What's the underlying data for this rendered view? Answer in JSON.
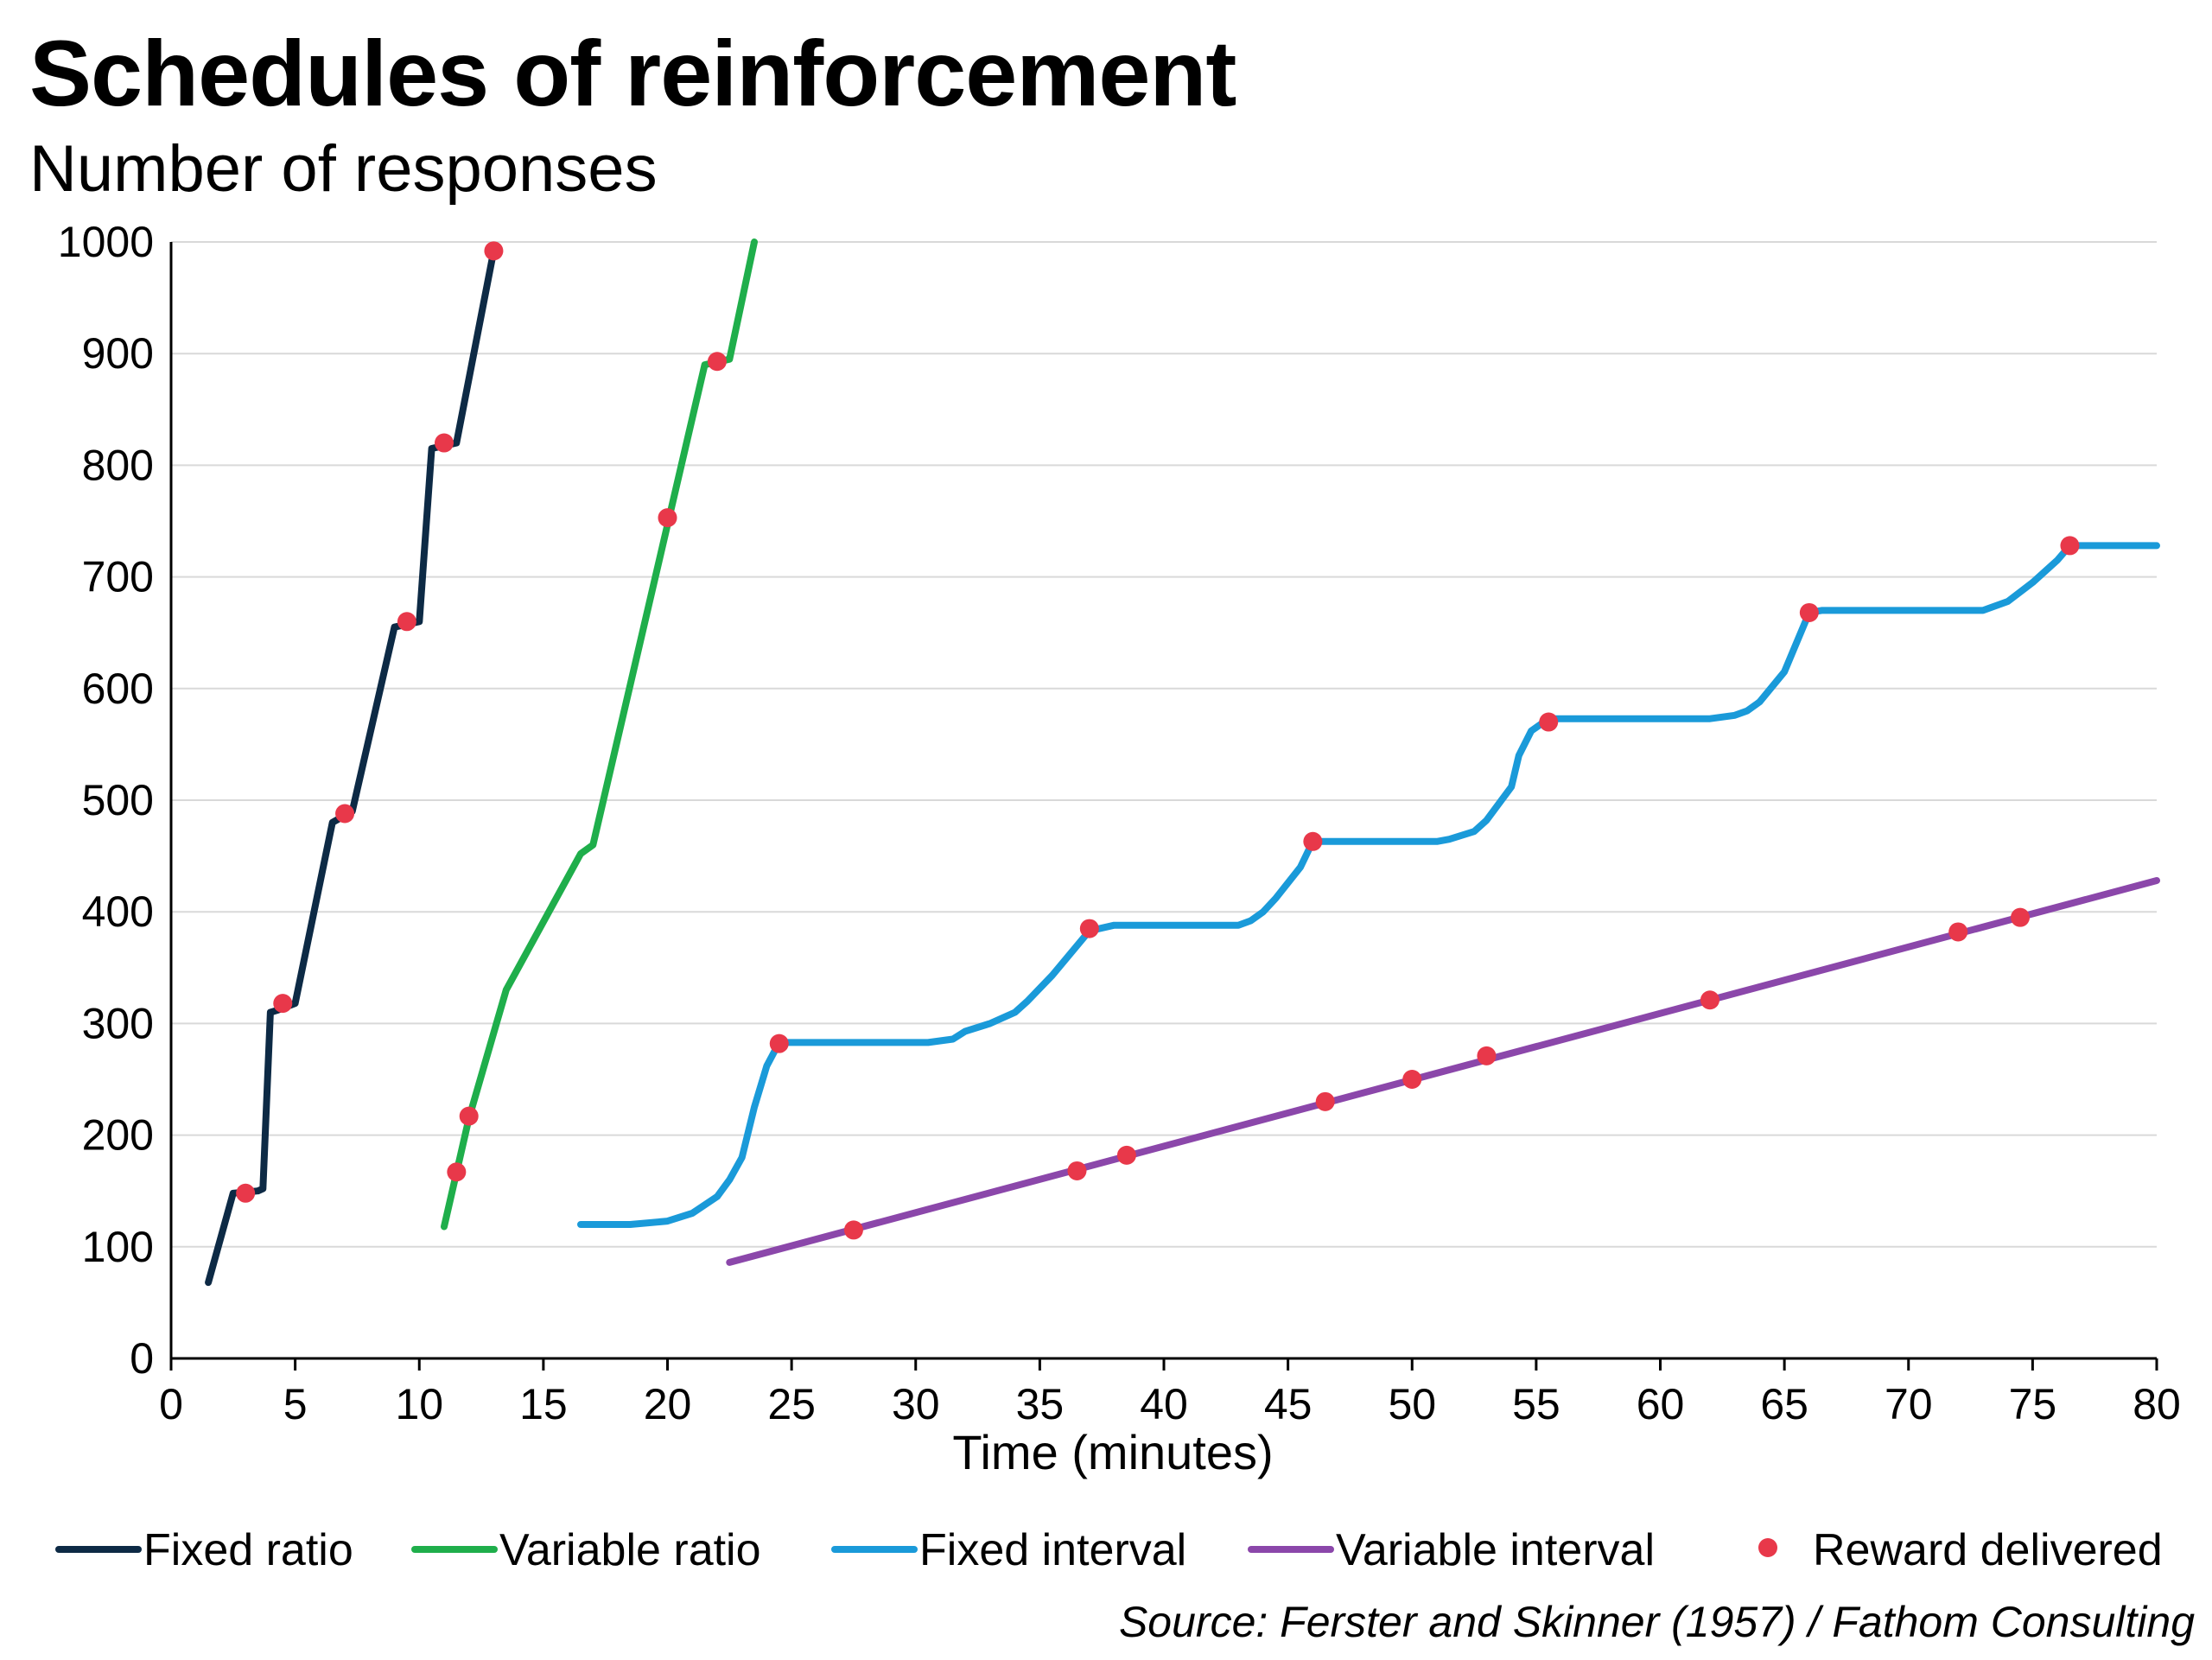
{
  "title": "Schedules of reinforcement",
  "subtitle": "Number of responses",
  "source": "Source: Ferster and Skinner (1957) / Fathom Consulting",
  "chart_data": {
    "type": "line",
    "title": "Schedules of reinforcement",
    "ylabel": "Number of responses",
    "xlabel": "Time (minutes)",
    "xlim": [
      0,
      80
    ],
    "ylim": [
      0,
      1000
    ],
    "xticks": [
      0,
      5,
      10,
      15,
      20,
      25,
      30,
      35,
      40,
      45,
      50,
      55,
      60,
      65,
      70,
      75,
      80
    ],
    "yticks": [
      0,
      100,
      200,
      300,
      400,
      500,
      600,
      700,
      800,
      900,
      1000
    ],
    "grid": "horizontal",
    "legend_position": "bottom",
    "series": [
      {
        "name": "Fixed ratio",
        "color": "#0d2a45",
        "points": [
          [
            1.5,
            68
          ],
          [
            2.5,
            148
          ],
          [
            3.5,
            150
          ],
          [
            3.7,
            152
          ],
          [
            4.0,
            310
          ],
          [
            4.3,
            312
          ],
          [
            5.0,
            318
          ],
          [
            6.5,
            480
          ],
          [
            7.3,
            490
          ],
          [
            9.0,
            655
          ],
          [
            10.0,
            660
          ],
          [
            10.5,
            815
          ],
          [
            11.5,
            820
          ],
          [
            13.0,
            992
          ]
        ]
      },
      {
        "name": "Variable ratio",
        "color": "#1fae4b",
        "points": [
          [
            11.0,
            118
          ],
          [
            12.0,
            215
          ],
          [
            13.5,
            330
          ],
          [
            16.5,
            452
          ],
          [
            17.0,
            460
          ],
          [
            21.5,
            890
          ],
          [
            22.5,
            895
          ],
          [
            23.5,
            1000
          ]
        ]
      },
      {
        "name": "Fixed interval",
        "color": "#1a9ad9",
        "points": [
          [
            16.5,
            120
          ],
          [
            17.5,
            120
          ],
          [
            18.5,
            120
          ],
          [
            20.0,
            123
          ],
          [
            21.0,
            130
          ],
          [
            22.0,
            145
          ],
          [
            22.5,
            160
          ],
          [
            23.0,
            180
          ],
          [
            23.5,
            225
          ],
          [
            24.0,
            262
          ],
          [
            24.5,
            283
          ],
          [
            26.0,
            283
          ],
          [
            30.5,
            283
          ],
          [
            31.5,
            286
          ],
          [
            32.0,
            293
          ],
          [
            33.0,
            300
          ],
          [
            34.0,
            310
          ],
          [
            34.5,
            320
          ],
          [
            35.5,
            343
          ],
          [
            37.0,
            383
          ],
          [
            38.0,
            388
          ],
          [
            40.0,
            388
          ],
          [
            42.0,
            388
          ],
          [
            43.0,
            388
          ],
          [
            43.5,
            392
          ],
          [
            44.0,
            400
          ],
          [
            44.5,
            412
          ],
          [
            45.5,
            440
          ],
          [
            46.0,
            463
          ],
          [
            48.0,
            463
          ],
          [
            51.0,
            463
          ],
          [
            51.5,
            465
          ],
          [
            52.5,
            472
          ],
          [
            53.0,
            482
          ],
          [
            54.0,
            512
          ],
          [
            54.3,
            540
          ],
          [
            54.8,
            562
          ],
          [
            55.5,
            573
          ],
          [
            58.0,
            573
          ],
          [
            61.0,
            573
          ],
          [
            62.0,
            573
          ],
          [
            63.0,
            576
          ],
          [
            63.5,
            580
          ],
          [
            64.0,
            588
          ],
          [
            65.0,
            615
          ],
          [
            66.0,
            668
          ],
          [
            66.5,
            670
          ],
          [
            70.0,
            670
          ],
          [
            73.0,
            670
          ],
          [
            74.0,
            678
          ],
          [
            75.0,
            695
          ],
          [
            76.0,
            715
          ],
          [
            76.5,
            728
          ],
          [
            78.0,
            728
          ],
          [
            80.0,
            728
          ]
        ]
      },
      {
        "name": "Variable interval",
        "color": "#8b47aa",
        "points": [
          [
            22.5,
            86
          ],
          [
            80.0,
            428
          ]
        ]
      }
    ],
    "rewards": {
      "name": "Reward delivered",
      "color": "#e8384a",
      "points": [
        [
          3.0,
          148
        ],
        [
          4.5,
          318
        ],
        [
          7.0,
          488
        ],
        [
          9.5,
          660
        ],
        [
          11.0,
          820
        ],
        [
          13.0,
          992
        ],
        [
          11.5,
          167
        ],
        [
          12.0,
          217
        ],
        [
          20.0,
          753
        ],
        [
          22.0,
          893
        ],
        [
          24.5,
          282
        ],
        [
          37.0,
          385
        ],
        [
          46.0,
          463
        ],
        [
          55.5,
          570
        ],
        [
          66.0,
          668
        ],
        [
          76.5,
          728
        ],
        [
          27.5,
          115
        ],
        [
          36.5,
          168
        ],
        [
          38.5,
          182
        ],
        [
          46.5,
          230
        ],
        [
          50.0,
          250
        ],
        [
          53.0,
          271
        ],
        [
          62.0,
          321
        ],
        [
          72.0,
          382
        ],
        [
          74.5,
          395
        ]
      ]
    },
    "legend": [
      "Fixed ratio",
      "Variable ratio",
      "Fixed interval",
      "Variable interval",
      "Reward delivered"
    ]
  }
}
